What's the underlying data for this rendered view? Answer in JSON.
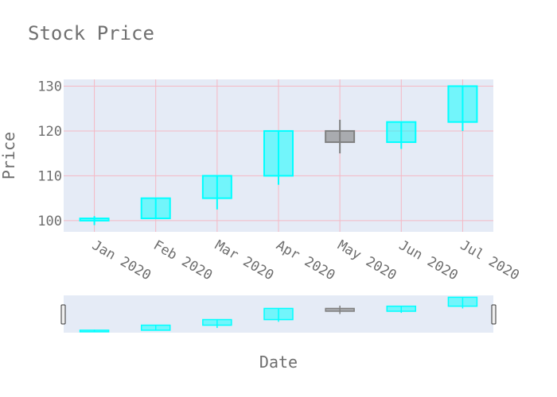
{
  "chart_data": {
    "type": "candlestick",
    "title": "Stock Price",
    "xlabel": "Date",
    "ylabel": "Price",
    "ylim": [
      97.5,
      131.5
    ],
    "yticks": [
      100,
      110,
      120,
      130
    ],
    "x_tick_labels": [
      "Jan 2020",
      "Feb 2020",
      "Mar 2020",
      "Apr 2020",
      "May 2020",
      "Jun 2020",
      "Jul 2020"
    ],
    "grid": true,
    "range_slider": true,
    "increasing_color": "#00ffff",
    "decreasing_color": "#808080",
    "candles": [
      {
        "x": "Jan 2020",
        "open": 100,
        "high": 101,
        "low": 99,
        "close": 100.5
      },
      {
        "x": "Feb 2020",
        "open": 100.5,
        "high": 105,
        "low": 100.5,
        "close": 105
      },
      {
        "x": "Mar 2020",
        "open": 105,
        "high": 110,
        "low": 102.5,
        "close": 110
      },
      {
        "x": "Apr 2020",
        "open": 110,
        "high": 120,
        "low": 108,
        "close": 120
      },
      {
        "x": "May 2020",
        "open": 120,
        "high": 122.5,
        "low": 115,
        "close": 117.5
      },
      {
        "x": "Jun 2020",
        "open": 117.5,
        "high": 122,
        "low": 116,
        "close": 122
      },
      {
        "x": "Jul 2020",
        "open": 122,
        "high": 130,
        "low": 120,
        "close": 130
      }
    ]
  }
}
